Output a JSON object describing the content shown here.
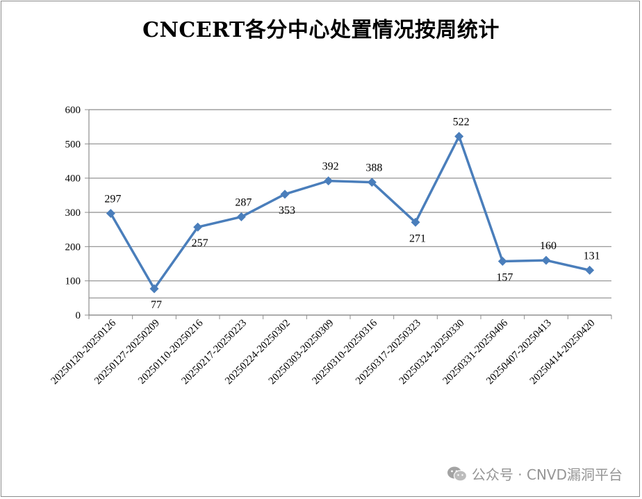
{
  "chart_data": {
    "type": "line",
    "title": "CNCERT各分中心处置情况按周统计",
    "categories": [
      "20250120-20250126",
      "20250127-20250209",
      "20250110-20250216",
      "20250217-20250223",
      "20250224-20250302",
      "20250303-20250309",
      "20250310-20250316",
      "20250317-20250323",
      "20250324-20250330",
      "20250331-20250406",
      "20250407-20250413",
      "20250414-20250420"
    ],
    "values": [
      297,
      77,
      257,
      287,
      353,
      392,
      388,
      271,
      522,
      157,
      160,
      131
    ],
    "ylim": [
      0,
      600
    ],
    "yticks": [
      0,
      100,
      200,
      300,
      400,
      500,
      600
    ],
    "grid": true,
    "line_color": "#4a7ebb",
    "xlabel": "",
    "ylabel": ""
  },
  "watermark": {
    "icon": "wechat-icon",
    "text": "公众号 · CNVD漏洞平台"
  }
}
